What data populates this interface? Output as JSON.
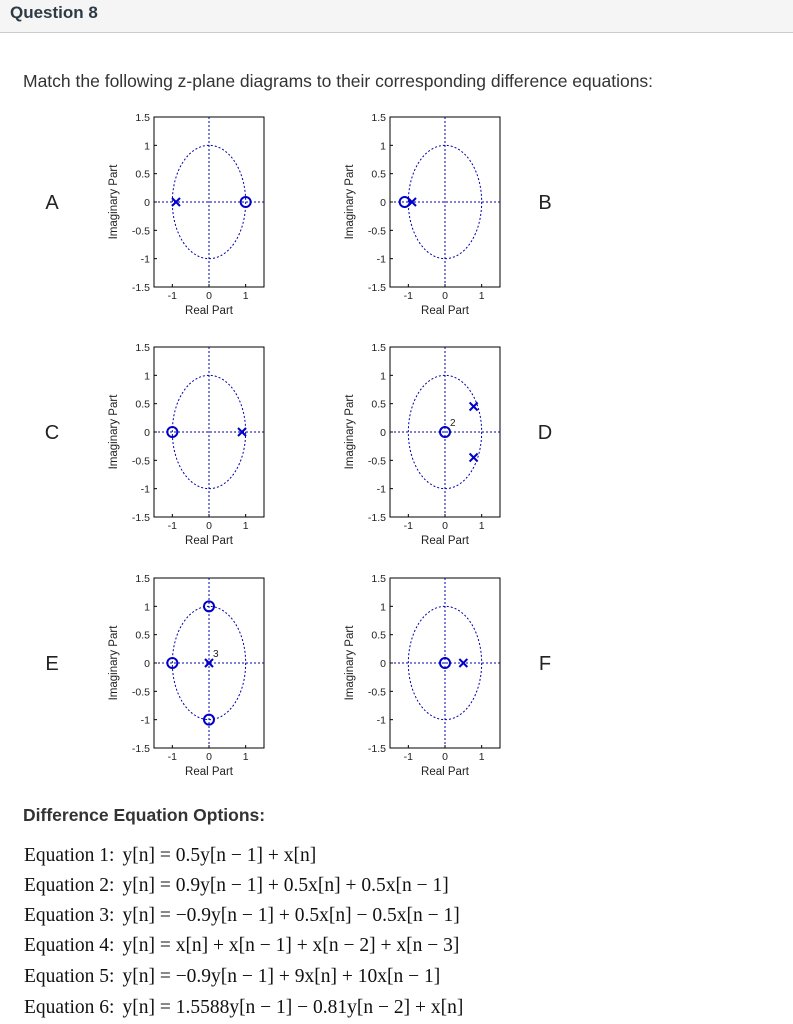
{
  "question": {
    "title": "Question 8",
    "prompt": "Match the following z-plane diagrams to their corresponding difference equations:"
  },
  "axes": {
    "ylabel": "Imaginary Part",
    "xlabel": "Real Part",
    "yticks": [
      "1.5",
      "1",
      "0.5",
      "0",
      "-0.5",
      "-1",
      "-1.5"
    ],
    "xticks": [
      "-1",
      "0",
      "1"
    ]
  },
  "colors": {
    "marker": "#0000cc",
    "unit_circle": "#0000aa",
    "axis_dash": "#0000aa",
    "frame": "#000000"
  },
  "chart_data": [
    {
      "type": "scatter",
      "label": "A",
      "xlabel": "Real Part",
      "ylabel": "Imaginary Part",
      "xlim": [
        -1.5,
        1.5
      ],
      "ylim": [
        -1.5,
        1.5
      ],
      "poles": [
        {
          "re": -0.9,
          "im": 0
        }
      ],
      "zeros": [
        {
          "re": 1,
          "im": 0
        }
      ],
      "unit_circle": true
    },
    {
      "type": "scatter",
      "label": "B",
      "xlabel": "Real Part",
      "ylabel": "Imaginary Part",
      "xlim": [
        -1.5,
        1.5
      ],
      "ylim": [
        -1.5,
        1.5
      ],
      "poles": [
        {
          "re": -0.9,
          "im": 0
        }
      ],
      "zeros": [
        {
          "re": -1.1,
          "im": 0
        }
      ],
      "unit_circle": true
    },
    {
      "type": "scatter",
      "label": "C",
      "xlabel": "Real Part",
      "ylabel": "Imaginary Part",
      "xlim": [
        -1.5,
        1.5
      ],
      "ylim": [
        -1.5,
        1.5
      ],
      "poles": [
        {
          "re": 0.9,
          "im": 0
        }
      ],
      "zeros": [
        {
          "re": -1,
          "im": 0
        }
      ],
      "unit_circle": true
    },
    {
      "type": "scatter",
      "label": "D",
      "xlabel": "Real Part",
      "ylabel": "Imaginary Part",
      "xlim": [
        -1.5,
        1.5
      ],
      "ylim": [
        -1.5,
        1.5
      ],
      "poles": [
        {
          "re": 0.78,
          "im": 0.45
        },
        {
          "re": 0.78,
          "im": -0.45
        }
      ],
      "zeros": [
        {
          "re": 0,
          "im": 0,
          "mult": "2"
        }
      ],
      "unit_circle": true
    },
    {
      "type": "scatter",
      "label": "E",
      "xlabel": "Real Part",
      "ylabel": "Imaginary Part",
      "xlim": [
        -1.5,
        1.5
      ],
      "ylim": [
        -1.5,
        1.5
      ],
      "poles": [
        {
          "re": 0,
          "im": 0,
          "mult": "3"
        }
      ],
      "zeros": [
        {
          "re": 0,
          "im": 1
        },
        {
          "re": 0,
          "im": -1
        },
        {
          "re": -1,
          "im": 0
        }
      ],
      "unit_circle": true
    },
    {
      "type": "scatter",
      "label": "F",
      "xlabel": "Real Part",
      "ylabel": "Imaginary Part",
      "xlim": [
        -1.5,
        1.5
      ],
      "ylim": [
        -1.5,
        1.5
      ],
      "poles": [
        {
          "re": 0.5,
          "im": 0
        }
      ],
      "zeros": [
        {
          "re": 0,
          "im": 0
        }
      ],
      "unit_circle": true
    }
  ],
  "options": {
    "title": "Difference Equation Options:",
    "equations": [
      {
        "label": "Equation 1:",
        "text": "y[n] = 0.5y[n − 1] + x[n]"
      },
      {
        "label": "Equation 2:",
        "text": "y[n] = 0.9y[n − 1] + 0.5x[n] + 0.5x[n − 1]"
      },
      {
        "label": "Equation 3:",
        "text": "y[n] = −0.9y[n − 1] + 0.5x[n] − 0.5x[n − 1]"
      },
      {
        "label": "Equation 4:",
        "text": "y[n] = x[n] + x[n − 1] + x[n − 2] + x[n − 3]"
      },
      {
        "label": "Equation 5:",
        "text": "y[n] = −0.9y[n − 1] + 9x[n] + 10x[n − 1]"
      },
      {
        "label": "Equation 6:",
        "text": "y[n] = 1.5588y[n − 1] − 0.81y[n − 2] + x[n]"
      }
    ]
  }
}
